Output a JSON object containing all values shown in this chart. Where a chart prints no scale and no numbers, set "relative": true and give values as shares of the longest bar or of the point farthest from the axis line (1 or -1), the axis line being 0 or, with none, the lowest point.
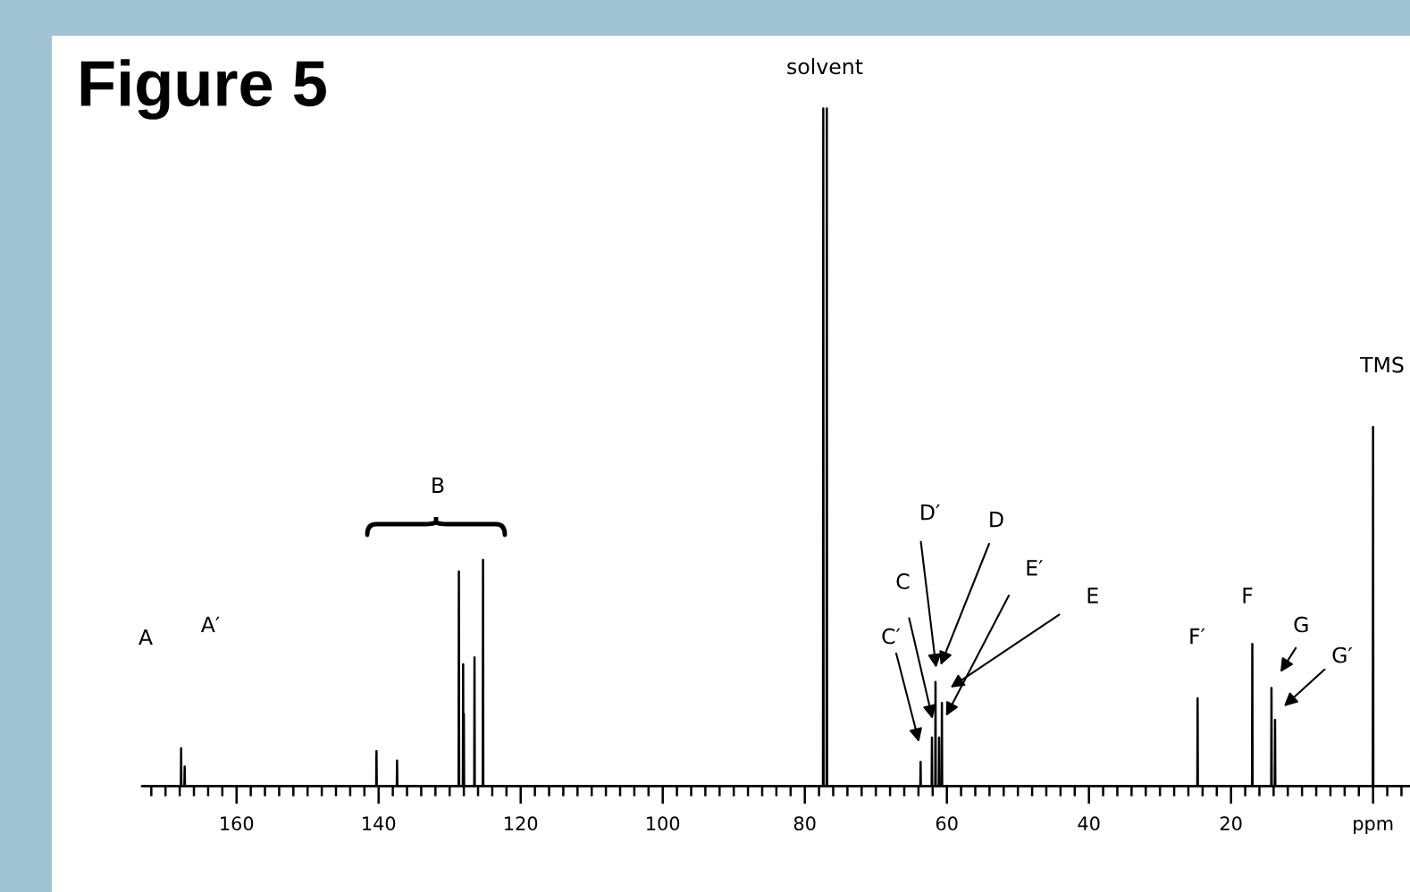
{
  "chart_data": {
    "type": "line",
    "title": "Figure 5",
    "relative": true,
    "x": [
      173.3,
      167.84,
      167.8,
      167.76,
      167.34,
      167.3,
      167.26,
      140.34,
      140.3,
      140.26,
      137.44,
      137.4,
      137.36,
      128.74,
      128.7,
      128.66,
      128.14,
      128.1,
      128.06,
      128.04,
      128.0,
      127.96,
      126.54,
      126.5,
      126.46,
      125.34,
      125.3,
      125.26,
      77.44,
      77.4,
      77.36,
      76.94,
      76.9,
      76.86,
      63.74,
      63.7,
      63.66,
      62.14,
      62.1,
      62.06,
      61.64,
      61.6,
      61.56,
      61.14,
      61.1,
      61.06,
      60.74,
      60.7,
      60.66,
      24.74,
      24.7,
      24.66,
      17.04,
      17.0,
      16.96,
      14.34,
      14.3,
      14.26,
      13.84,
      13.8,
      13.76,
      0.04,
      0.0,
      -0.04,
      -5.2
    ],
    "series": [
      {
        "color": "#000000",
        "values": [
          0,
          0,
          0.056,
          0,
          0,
          0.029,
          0,
          0,
          0.052,
          0,
          0,
          0.038,
          0,
          0,
          0.317,
          0,
          0,
          0.18,
          0,
          0,
          0.107,
          0,
          0,
          0.19,
          0,
          0,
          0.334,
          0,
          0,
          1.0,
          0,
          0,
          1.0,
          0,
          0,
          0.036,
          0,
          0,
          0.072,
          0,
          0,
          0.154,
          0,
          0,
          0.072,
          0,
          0,
          0.123,
          0,
          0,
          0.13,
          0,
          0,
          0.21,
          0,
          0,
          0.145,
          0,
          0,
          0.098,
          0,
          0,
          0.53,
          0,
          0
        ]
      }
    ],
    "xlim": [
      173.3,
      -5.2
    ],
    "xticks": [
      {
        "value": 172,
        "label": null
      },
      {
        "value": 170,
        "label": null
      },
      {
        "value": 168,
        "label": null
      },
      {
        "value": 166,
        "label": null
      },
      {
        "value": 164,
        "label": null
      },
      {
        "value": 162,
        "label": null
      },
      160,
      {
        "value": 158,
        "label": null
      },
      {
        "value": 156,
        "label": null
      },
      {
        "value": 154,
        "label": null
      },
      {
        "value": 152,
        "label": null
      },
      {
        "value": 150,
        "label": null
      },
      {
        "value": 148,
        "label": null
      },
      {
        "value": 146,
        "label": null
      },
      {
        "value": 144,
        "label": null
      },
      {
        "value": 142,
        "label": null
      },
      140,
      {
        "value": 138,
        "label": null
      },
      {
        "value": 136,
        "label": null
      },
      {
        "value": 134,
        "label": null
      },
      {
        "value": 132,
        "label": null
      },
      {
        "value": 130,
        "label": null
      },
      {
        "value": 128,
        "label": null
      },
      {
        "value": 126,
        "label": null
      },
      {
        "value": 124,
        "label": null
      },
      {
        "value": 122,
        "label": null
      },
      120,
      {
        "value": 118,
        "label": null
      },
      {
        "value": 116,
        "label": null
      },
      {
        "value": 114,
        "label": null
      },
      {
        "value": 112,
        "label": null
      },
      {
        "value": 110,
        "label": null
      },
      {
        "value": 108,
        "label": null
      },
      {
        "value": 106,
        "label": null
      },
      {
        "value": 104,
        "label": null
      },
      {
        "value": 102,
        "label": null
      },
      100,
      {
        "value": 98,
        "label": null
      },
      {
        "value": 96,
        "label": null
      },
      {
        "value": 94,
        "label": null
      },
      {
        "value": 92,
        "label": null
      },
      {
        "value": 90,
        "label": null
      },
      {
        "value": 88,
        "label": null
      },
      {
        "value": 86,
        "label": null
      },
      {
        "value": 84,
        "label": null
      },
      {
        "value": 82,
        "label": null
      },
      80,
      {
        "value": 78,
        "label": null
      },
      {
        "value": 76,
        "label": null
      },
      {
        "value": 74,
        "label": null
      },
      {
        "value": 72,
        "label": null
      },
      {
        "value": 70,
        "label": null
      },
      {
        "value": 68,
        "label": null
      },
      {
        "value": 66,
        "label": null
      },
      {
        "value": 64,
        "label": null
      },
      {
        "value": 62,
        "label": null
      },
      60,
      {
        "value": 58,
        "label": null
      },
      {
        "value": 56,
        "label": null
      },
      {
        "value": 54,
        "label": null
      },
      {
        "value": 52,
        "label": null
      },
      {
        "value": 50,
        "label": null
      },
      {
        "value": 48,
        "label": null
      },
      {
        "value": 46,
        "label": null
      },
      {
        "value": 44,
        "label": null
      },
      {
        "value": 42,
        "label": null
      },
      40,
      {
        "value": 38,
        "label": null
      },
      {
        "value": 36,
        "label": null
      },
      {
        "value": 34,
        "label": null
      },
      {
        "value": 32,
        "label": null
      },
      {
        "value": 30,
        "label": null
      },
      {
        "value": 28,
        "label": null
      },
      {
        "value": 26,
        "label": null
      },
      {
        "value": 24,
        "label": null
      },
      {
        "value": 22,
        "label": null
      },
      20,
      {
        "value": 18,
        "label": null
      },
      {
        "value": 16,
        "label": null
      },
      {
        "value": 14,
        "label": null
      },
      {
        "value": 12,
        "label": null
      },
      {
        "value": 10,
        "label": null
      },
      {
        "value": 8,
        "label": null
      },
      {
        "value": 6,
        "label": null
      },
      {
        "value": 4,
        "label": null
      },
      {
        "value": 2,
        "label": null
      },
      {
        "value": 0,
        "label": "ppm"
      },
      {
        "value": -2,
        "label": null
      },
      {
        "value": -4,
        "label": null
      }
    ],
    "tick_labels": "x",
    "annotations": [
      "A",
      "A′",
      "B",
      "solvent",
      "C′",
      "C",
      "D′",
      "D",
      "E′",
      "E",
      "F′",
      "F",
      "G",
      "G′",
      "TMS"
    ]
  }
}
